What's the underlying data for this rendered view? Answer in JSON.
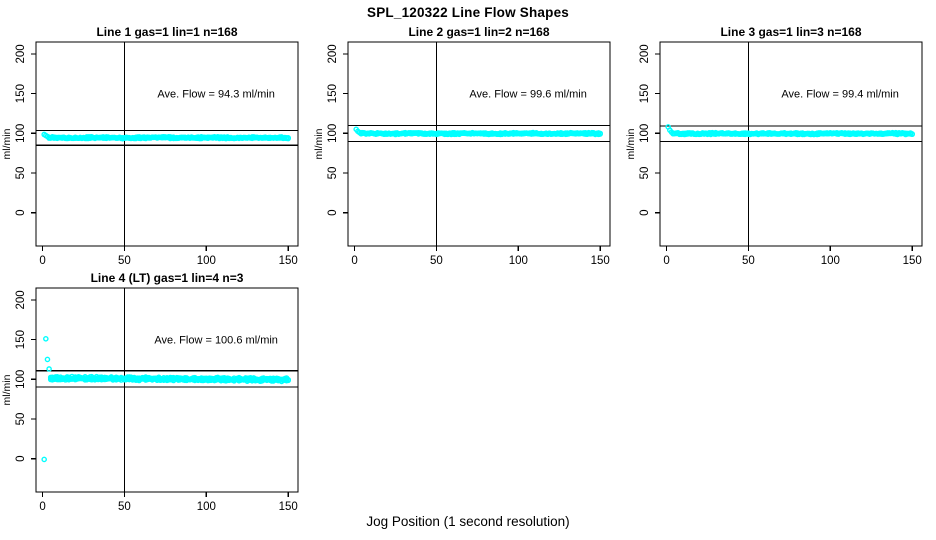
{
  "page": {
    "title": "SPL_120322  Line Flow Shapes",
    "xlabel": "Jog Position (1 second resolution)"
  },
  "colors": {
    "point": "#00FFFF",
    "axis": "#000000",
    "background": "#FFFFFF"
  },
  "axes": {
    "xlim": [
      -4,
      156
    ],
    "ylim": [
      -42,
      215
    ],
    "xticks": [
      0,
      50,
      100,
      150
    ],
    "yticks": [
      0,
      50,
      100,
      150,
      200
    ],
    "ylabel": "ml/min",
    "vline_x": 50
  },
  "chart_data": [
    {
      "type": "scatter",
      "title": "Line 1 gas=1 lin=1 n=168",
      "ave_flow": 94.3,
      "annotation": {
        "text": "Ave. Flow =  94.3  ml/min",
        "x": 106,
        "y": 150
      },
      "hlines": [
        103.7,
        84.9
      ],
      "vline_x": 50,
      "transient_points": [
        [
          1,
          98.5
        ],
        [
          2,
          97.2
        ],
        [
          3,
          95.9
        ]
      ],
      "flat_segment": {
        "from": 4,
        "to": 150,
        "level": 94.4,
        "noise": 1.0,
        "wave": 0.4,
        "drift": 0,
        "runs": 2
      },
      "xlabel_ticks": [
        0,
        50,
        100,
        150
      ],
      "ylabel": "ml/min"
    },
    {
      "type": "scatter",
      "title": "Line 2 gas=1 lin=2 n=168",
      "ave_flow": 99.6,
      "annotation": {
        "text": "Ave. Flow =  99.6  ml/min",
        "x": 106,
        "y": 150
      },
      "hlines": [
        109.6,
        89.6
      ],
      "vline_x": 50,
      "transient_points": [
        [
          1,
          105.0
        ],
        [
          2,
          102.5
        ],
        [
          3,
          101.0
        ]
      ],
      "flat_segment": {
        "from": 4,
        "to": 150,
        "level": 99.7,
        "noise": 1.0,
        "wave": 0.4,
        "drift": 0,
        "runs": 2
      },
      "xlabel_ticks": [
        0,
        50,
        100,
        150
      ],
      "ylabel": "ml/min"
    },
    {
      "type": "scatter",
      "title": "Line 3 gas=1 lin=3 n=168",
      "ave_flow": 99.4,
      "annotation": {
        "text": "Ave. Flow =  99.4  ml/min",
        "x": 106,
        "y": 150
      },
      "hlines": [
        109.3,
        89.5
      ],
      "vline_x": 50,
      "transient_points": [
        [
          1,
          108.0
        ],
        [
          2,
          104.0
        ],
        [
          3,
          101.5
        ]
      ],
      "flat_segment": {
        "from": 4,
        "to": 150,
        "level": 99.6,
        "noise": 1.0,
        "wave": 0.4,
        "drift": 0,
        "runs": 2
      },
      "xlabel_ticks": [
        0,
        50,
        100,
        150
      ],
      "ylabel": "ml/min"
    },
    {
      "type": "scatter",
      "title": "Line 4 (LT) gas=1 lin=4 n=3",
      "ave_flow": 100.6,
      "annotation": {
        "text": "Ave. Flow =  100.6  ml/min",
        "x": 106,
        "y": 150
      },
      "hlines": [
        110.7,
        90.5
      ],
      "vline_x": 50,
      "transient_points": [
        [
          1,
          -1
        ],
        [
          2,
          151
        ],
        [
          3,
          125
        ],
        [
          4,
          113
        ]
      ],
      "flat_segment": {
        "from": 5,
        "to": 150,
        "level": 101.5,
        "noise": 1.6,
        "wave": 1.1,
        "drift": -2.0,
        "runs": 3
      },
      "xlabel_ticks": [
        0,
        50,
        100,
        150
      ],
      "ylabel": "ml/min"
    }
  ]
}
